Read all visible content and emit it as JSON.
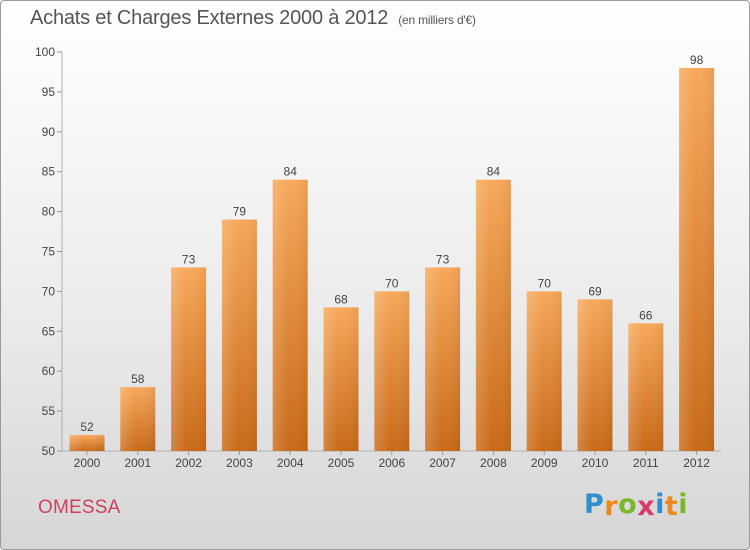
{
  "header": {
    "title": "Achats et Charges Externes 2000 à 2012",
    "unit": "(en milliers d'€)"
  },
  "footer": {
    "city": "OMESSA",
    "logo": [
      "P",
      "r",
      "o",
      "x",
      "i",
      "t",
      "i"
    ],
    "logo_colors": [
      "#2f8fd0",
      "#ee8a1a",
      "#7ab82a",
      "#d73c6a",
      "#2f8fd0",
      "#ee8a1a",
      "#7ab82a"
    ]
  },
  "chart_data": {
    "type": "bar",
    "title": "Achats et Charges Externes 2000 à 2012",
    "subtitle": "(en milliers d'€)",
    "categories": [
      "2000",
      "2001",
      "2002",
      "2003",
      "2004",
      "2005",
      "2006",
      "2007",
      "2008",
      "2009",
      "2010",
      "2011",
      "2012"
    ],
    "values": [
      52,
      58,
      73,
      79,
      84,
      68,
      70,
      73,
      84,
      70,
      69,
      66,
      98
    ],
    "ylim": [
      50,
      100
    ],
    "yticks": [
      50,
      55,
      60,
      65,
      70,
      75,
      80,
      85,
      90,
      95,
      100
    ],
    "grid": false,
    "bar_color_top": "#f7a85a",
    "bar_color_bottom": "#c96a18"
  }
}
